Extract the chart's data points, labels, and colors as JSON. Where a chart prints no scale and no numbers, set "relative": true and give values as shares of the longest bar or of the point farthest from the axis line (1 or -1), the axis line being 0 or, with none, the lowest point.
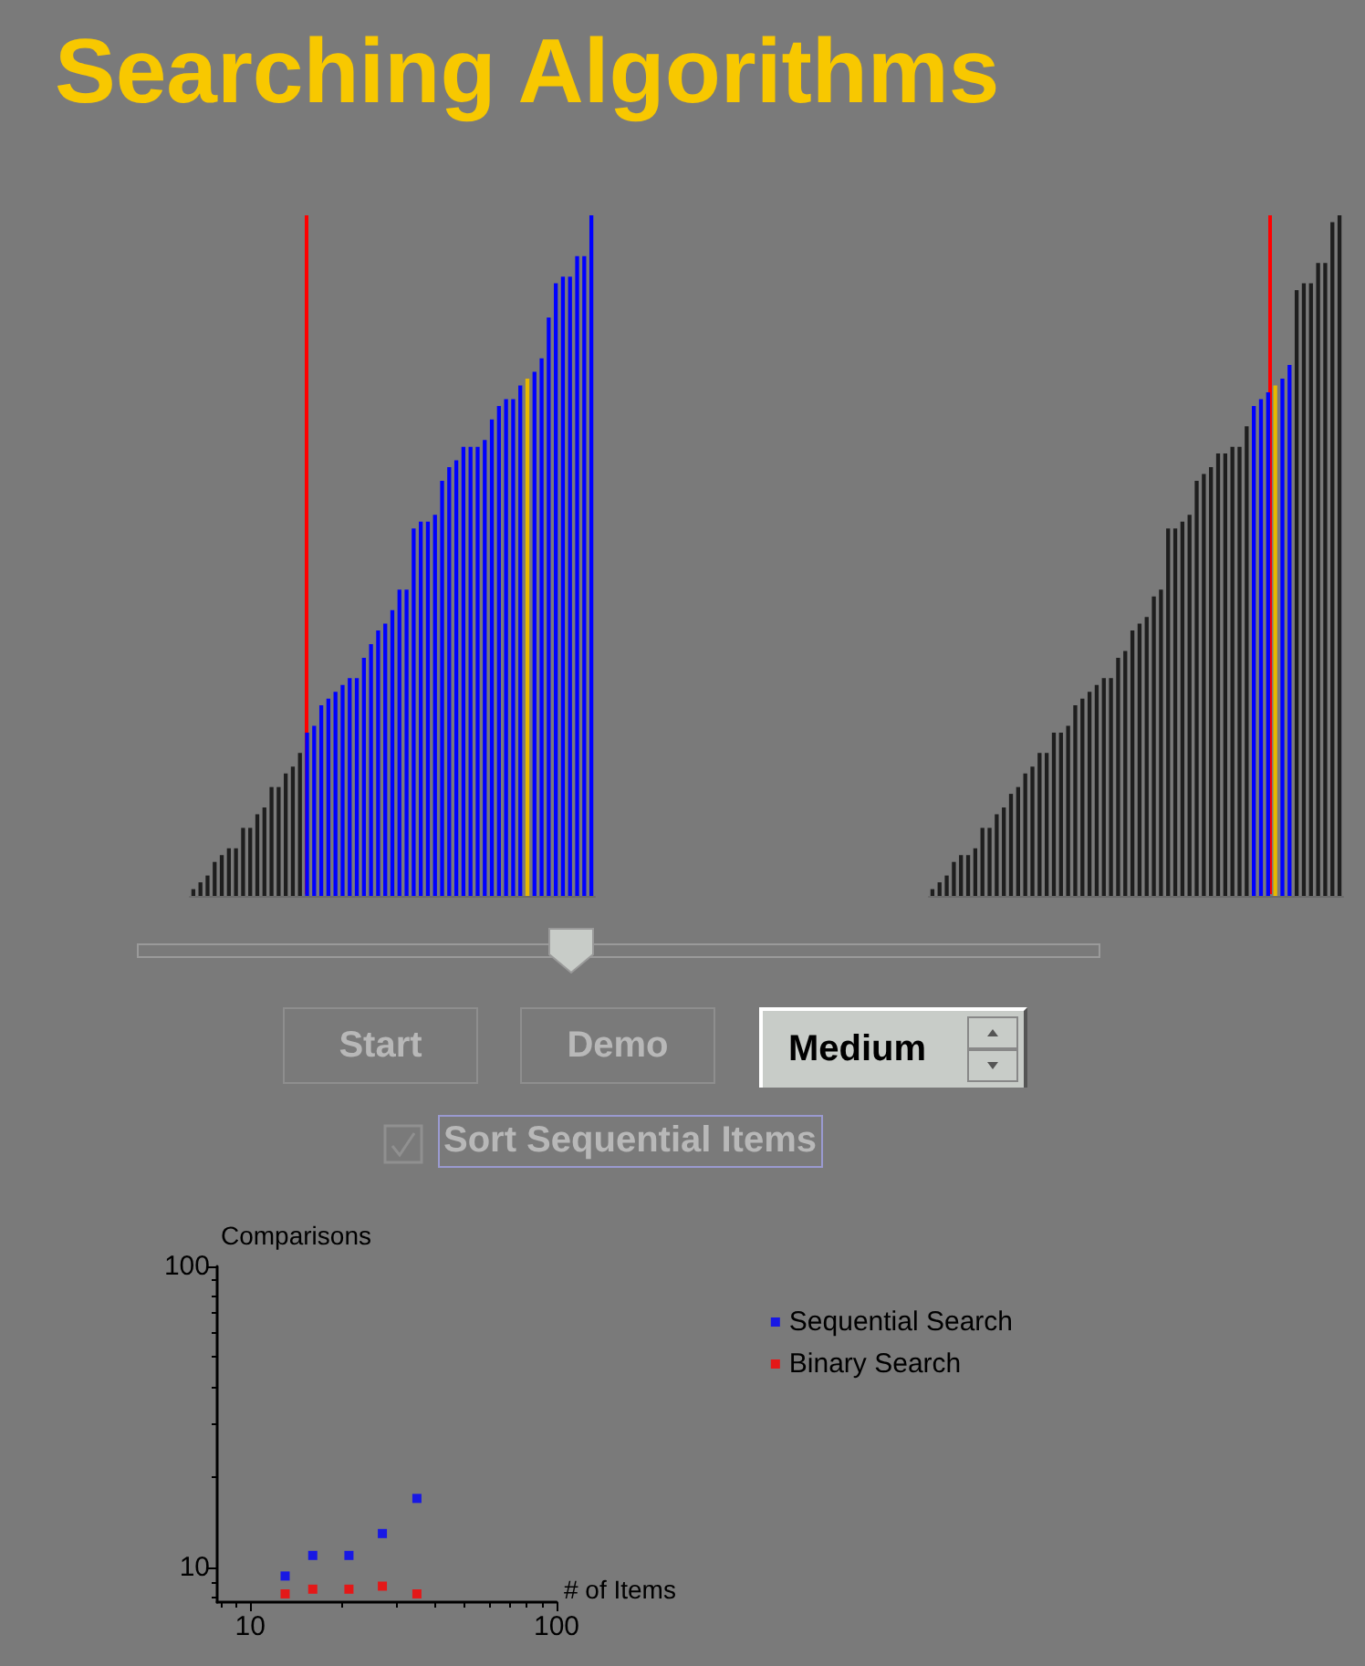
{
  "chart_data": [
    {
      "type": "bar",
      "title": "Searching Algorithms",
      "relative": true,
      "categories": [
        null,
        null,
        null,
        null,
        null,
        null,
        null,
        null,
        null,
        null,
        null,
        null,
        null,
        null,
        null,
        null,
        null,
        null,
        null,
        null,
        null,
        null,
        null,
        null,
        null,
        null,
        null,
        null,
        null,
        null,
        null,
        null,
        null,
        null,
        null,
        null,
        null,
        null,
        null,
        null,
        null,
        null,
        null,
        null,
        null,
        null,
        null,
        null,
        null,
        null,
        null,
        null,
        null,
        null,
        null,
        null,
        null
      ],
      "values": [
        0.01,
        0.02,
        0.03,
        0.05,
        0.06,
        0.07,
        0.07,
        0.1,
        0.1,
        0.12,
        0.13,
        0.16,
        0.16,
        0.18,
        0.19,
        0.21,
        0.24,
        0.25,
        0.28,
        0.29,
        0.3,
        0.31,
        0.32,
        0.32,
        0.35,
        0.37,
        0.39,
        0.4,
        0.42,
        0.45,
        0.45,
        0.54,
        0.55,
        0.55,
        0.56,
        0.61,
        0.63,
        0.64,
        0.66,
        0.66,
        0.66,
        0.67,
        0.7,
        0.72,
        0.73,
        0.73,
        0.75,
        0.76,
        0.77,
        0.79,
        0.85,
        0.9,
        0.91,
        0.91,
        0.94,
        0.94,
        1
      ],
      "colors": [
        "#1e1e1e",
        "#1e1e1e",
        "#1e1e1e",
        "#1e1e1e",
        "#1e1e1e",
        "#1e1e1e",
        "#1e1e1e",
        "#1e1e1e",
        "#1e1e1e",
        "#1e1e1e",
        "#1e1e1e",
        "#1e1e1e",
        "#1e1e1e",
        "#1e1e1e",
        "#1e1e1e",
        "#1e1e1e",
        "#0000ff",
        "#0000ff",
        "#0000ff",
        "#0000ff",
        "#0000ff",
        "#0000ff",
        "#0000ff",
        "#0000ff",
        "#0000ff",
        "#0000ff",
        "#0000ff",
        "#0000ff",
        "#0000ff",
        "#0000ff",
        "#0000ff",
        "#0000ff",
        "#0000ff",
        "#0000ff",
        "#0000ff",
        "#0000ff",
        "#0000ff",
        "#0000ff",
        "#0000ff",
        "#0000ff",
        "#0000ff",
        "#0000ff",
        "#0000ff",
        "#0000ff",
        "#0000ff",
        "#0000ff",
        "#0000ff",
        "#e8b800",
        "#0000ff",
        "#0000ff",
        "#0000ff",
        "#0000ff",
        "#0000ff",
        "#0000ff",
        "#0000ff",
        "#0000ff",
        "#0000ff"
      ],
      "data_labels": false
    },
    {
      "type": "bar",
      "relative": true,
      "categories": [
        null,
        null,
        null,
        null,
        null,
        null,
        null,
        null,
        null,
        null,
        null,
        null,
        null,
        null,
        null,
        null,
        null,
        null,
        null,
        null,
        null,
        null,
        null,
        null,
        null,
        null,
        null,
        null,
        null,
        null,
        null,
        null,
        null,
        null,
        null,
        null,
        null,
        null,
        null,
        null,
        null,
        null,
        null,
        null,
        null,
        null,
        null,
        null,
        null,
        null,
        null,
        null,
        null,
        null,
        null,
        null,
        null,
        null
      ],
      "values": [
        0.01,
        0.02,
        0.03,
        0.05,
        0.06,
        0.06,
        0.07,
        0.1,
        0.1,
        0.12,
        0.13,
        0.15,
        0.16,
        0.18,
        0.19,
        0.21,
        0.21,
        0.24,
        0.24,
        0.25,
        0.28,
        0.29,
        0.3,
        0.31,
        0.32,
        0.32,
        0.35,
        0.36,
        0.39,
        0.4,
        0.41,
        0.44,
        0.45,
        0.54,
        0.54,
        0.55,
        0.56,
        0.61,
        0.62,
        0.63,
        0.65,
        0.65,
        0.66,
        0.66,
        0.69,
        0.72,
        0.73,
        0.74,
        0.75,
        0.76,
        0.78,
        0.89,
        0.9,
        0.9,
        0.93,
        0.93,
        0.99,
        1
      ],
      "colors": [
        "#1e1e1e",
        "#1e1e1e",
        "#1e1e1e",
        "#1e1e1e",
        "#1e1e1e",
        "#1e1e1e",
        "#1e1e1e",
        "#1e1e1e",
        "#1e1e1e",
        "#1e1e1e",
        "#1e1e1e",
        "#1e1e1e",
        "#1e1e1e",
        "#1e1e1e",
        "#1e1e1e",
        "#1e1e1e",
        "#1e1e1e",
        "#1e1e1e",
        "#1e1e1e",
        "#1e1e1e",
        "#1e1e1e",
        "#1e1e1e",
        "#1e1e1e",
        "#1e1e1e",
        "#1e1e1e",
        "#1e1e1e",
        "#1e1e1e",
        "#1e1e1e",
        "#1e1e1e",
        "#1e1e1e",
        "#1e1e1e",
        "#1e1e1e",
        "#1e1e1e",
        "#1e1e1e",
        "#1e1e1e",
        "#1e1e1e",
        "#1e1e1e",
        "#1e1e1e",
        "#1e1e1e",
        "#1e1e1e",
        "#1e1e1e",
        "#1e1e1e",
        "#1e1e1e",
        "#1e1e1e",
        "#1e1e1e",
        "#0000ff",
        "#0000ff",
        "#0000ff",
        "#e8b800",
        "#0000ff",
        "#0000ff",
        "#1e1e1e",
        "#1e1e1e",
        "#1e1e1e",
        "#1e1e1e",
        "#1e1e1e",
        "#1e1e1e",
        "#1e1e1e"
      ],
      "data_labels": false
    },
    {
      "type": "other",
      "annotations": [
        "Start",
        "Demo",
        "Medium",
        "Sort Sequential Items"
      ]
    },
    {
      "type": "scatter",
      "ylabel": "Comparisons",
      "xlabel": "# of Items",
      "log": "xy",
      "xlim": [
        7.8,
        100
      ],
      "ylim": [
        7.7,
        100
      ],
      "xticks": [
        10,
        100
      ],
      "yticks": [
        10,
        100
      ],
      "legend": "right",
      "marker": "square",
      "x": [
        13,
        16,
        21,
        27,
        35
      ],
      "series": [
        {
          "name": "Sequential Search",
          "color": "#0000ff",
          "values": [
            9.4,
            11,
            11,
            13,
            17
          ]
        },
        {
          "name": "Binary Search",
          "color": "#ff0000",
          "values": [
            8.2,
            8.5,
            8.5,
            8.7,
            8.2
          ]
        }
      ]
    }
  ]
}
